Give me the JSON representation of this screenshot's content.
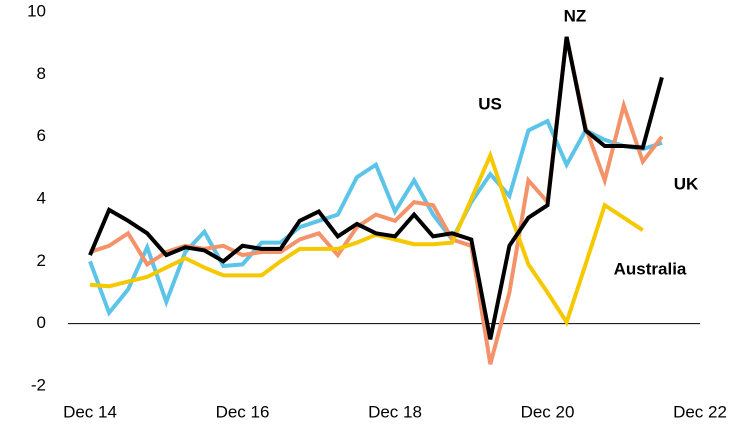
{
  "chart_data": {
    "type": "line",
    "categories": [
      "Dec 14",
      null,
      null,
      null,
      null,
      null,
      null,
      null,
      "Dec 16",
      null,
      null,
      null,
      null,
      null,
      null,
      null,
      "Dec 18",
      null,
      null,
      null,
      null,
      null,
      null,
      null,
      "Dec 20",
      null,
      null,
      null,
      null,
      null,
      null,
      null,
      "Dec 22"
    ],
    "series": [
      {
        "name": "US",
        "color": "#5bc4e8",
        "values": [
          2.0,
          0.35,
          1.1,
          2.45,
          0.7,
          2.3,
          2.95,
          1.85,
          1.9,
          2.6,
          2.6,
          3.1,
          3.3,
          3.5,
          4.7,
          5.1,
          3.6,
          4.6,
          3.5,
          2.7,
          3.9,
          4.8,
          4.1,
          6.2,
          6.5,
          5.1,
          6.2,
          5.9,
          5.7,
          5.6,
          5.8,
          null,
          null
        ]
      },
      {
        "name": "UK",
        "color": "#f4926a",
        "values": [
          2.3,
          2.5,
          2.9,
          1.9,
          2.3,
          2.5,
          2.4,
          2.5,
          2.2,
          2.3,
          2.3,
          2.7,
          2.9,
          2.2,
          3.1,
          3.5,
          3.3,
          3.9,
          3.8,
          2.7,
          2.5,
          -1.3,
          1.0,
          4.6,
          3.9,
          9.2,
          6.3,
          4.6,
          7.0,
          5.2,
          6.0,
          null,
          null
        ]
      },
      {
        "name": "Australia",
        "color": "#f5c800",
        "values": [
          1.25,
          1.2,
          1.35,
          1.5,
          1.8,
          2.1,
          1.8,
          1.55,
          1.55,
          1.55,
          2.0,
          2.4,
          2.4,
          2.4,
          2.6,
          2.85,
          2.7,
          2.55,
          2.55,
          2.6,
          4.0,
          5.4,
          3.6,
          1.9,
          1.0,
          0.05,
          1.9,
          3.8,
          3.4,
          3.0,
          null,
          null,
          null
        ]
      },
      {
        "name": "NZ",
        "color": "#000000",
        "values": [
          2.2,
          3.65,
          3.3,
          2.9,
          2.2,
          2.45,
          2.35,
          2.0,
          2.5,
          2.4,
          2.4,
          3.3,
          3.6,
          2.8,
          3.2,
          2.9,
          2.8,
          3.5,
          2.8,
          2.9,
          2.7,
          -0.5,
          2.5,
          3.4,
          3.8,
          9.2,
          6.2,
          5.7,
          5.7,
          5.65,
          7.9,
          null,
          null
        ]
      }
    ],
    "ylim": [
      -2,
      10
    ],
    "yticks": [
      -2,
      0,
      2,
      4,
      6,
      8,
      10
    ],
    "grid": false
  }
}
